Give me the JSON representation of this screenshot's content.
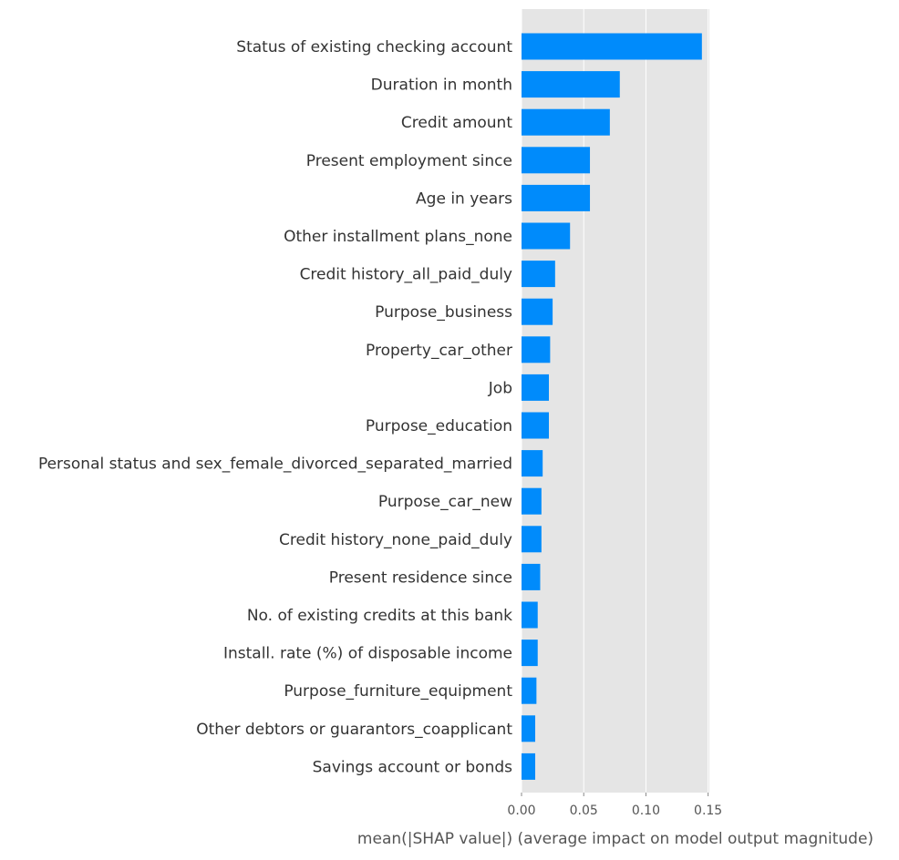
{
  "chart_data": {
    "type": "bar",
    "orientation": "horizontal",
    "categories": [
      "Status of existing checking account",
      "Duration in month",
      "Credit amount",
      "Present employment since",
      "Age in years",
      "Other installment plans_none",
      "Credit history_all_paid_duly",
      "Purpose_business",
      "Property_car_other",
      "Job",
      "Purpose_education",
      "Personal status and sex_female_divorced_separated_married",
      "Purpose_car_new",
      "Credit history_none_paid_duly",
      "Present residence since",
      "No. of existing credits at this bank",
      "Install. rate (%) of disposable income",
      "Purpose_furniture_equipment",
      "Other debtors or guarantors_coapplicant",
      "Savings account or bonds"
    ],
    "values": [
      0.145,
      0.079,
      0.071,
      0.055,
      0.055,
      0.039,
      0.027,
      0.025,
      0.023,
      0.022,
      0.022,
      0.017,
      0.016,
      0.016,
      0.015,
      0.013,
      0.013,
      0.012,
      0.011,
      0.011
    ],
    "xlabel": "mean(|SHAP value|) (average impact on model output magnitude)",
    "xlim": [
      0,
      0.151
    ],
    "xticks": [
      0.0,
      0.05,
      0.1,
      0.15
    ],
    "xtick_labels": [
      "0.00",
      "0.05",
      "0.10",
      "0.15"
    ],
    "grid": true,
    "colors": {
      "bar": "#008bfb",
      "background": "#e5e5e5",
      "grid": "#ffffff",
      "label": "#333333",
      "axis_text": "#555555"
    }
  }
}
